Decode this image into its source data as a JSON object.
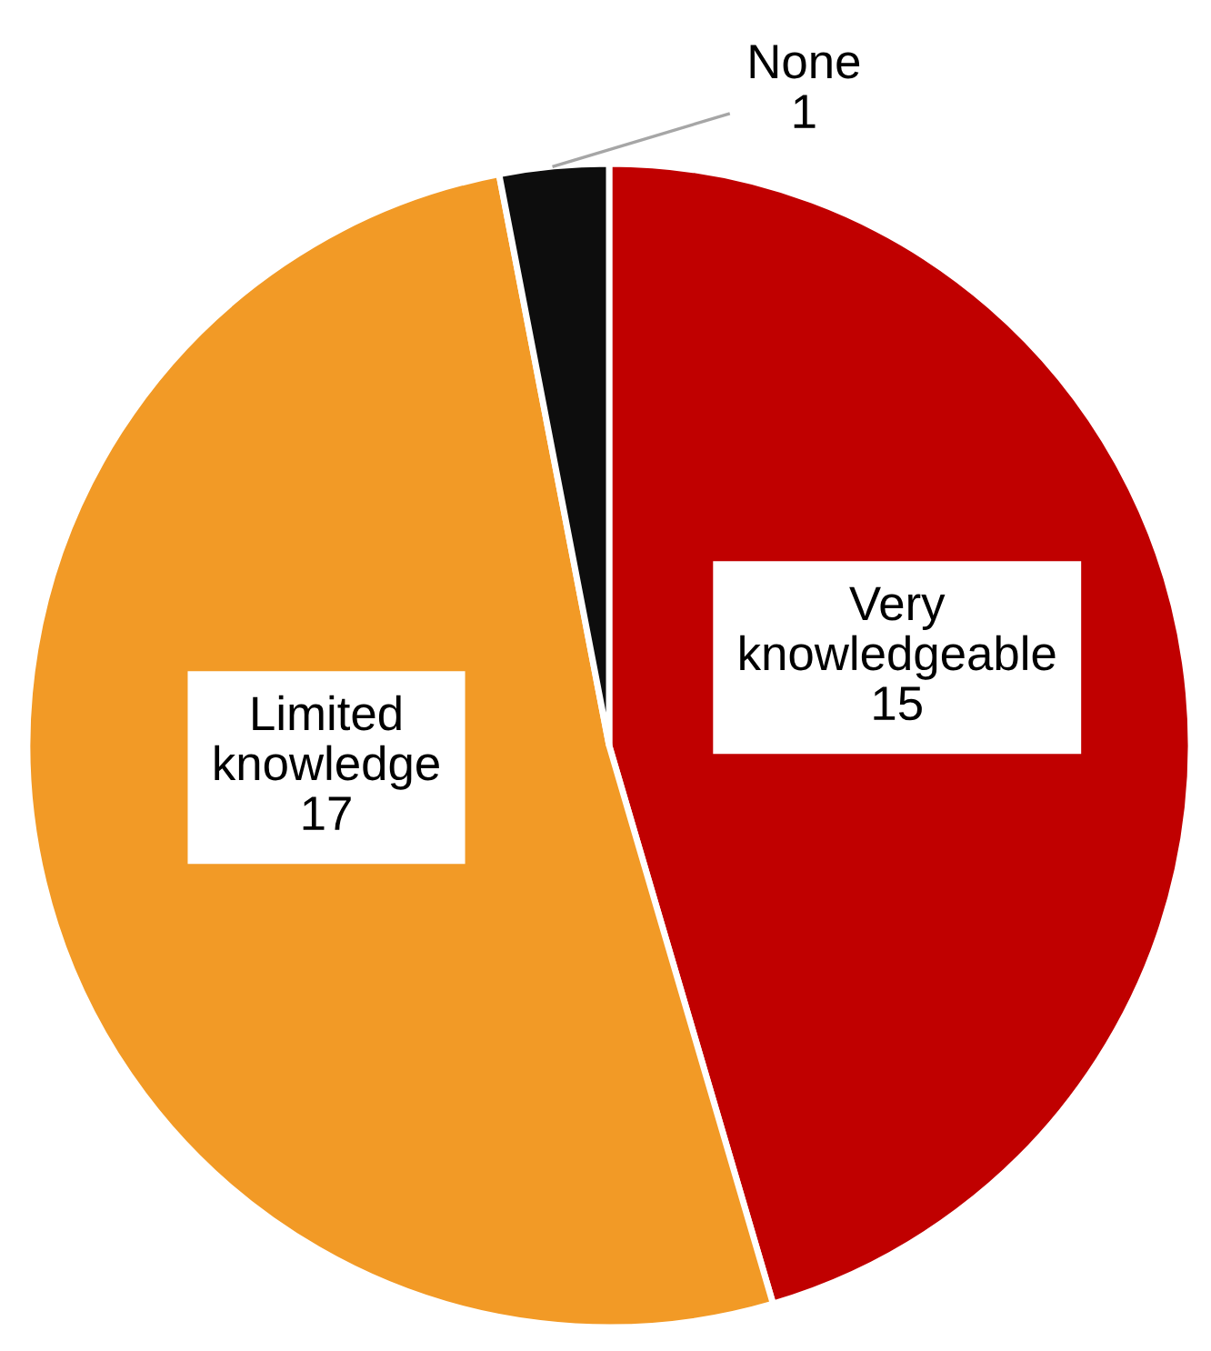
{
  "chart_data": {
    "type": "pie",
    "categories": [
      "Very knowledgeable",
      "Limited knowledge",
      "None"
    ],
    "values": [
      15,
      17,
      1
    ],
    "colors": [
      "#c00000",
      "#f29a26",
      "#0d0d0d"
    ],
    "data_labels": true
  }
}
